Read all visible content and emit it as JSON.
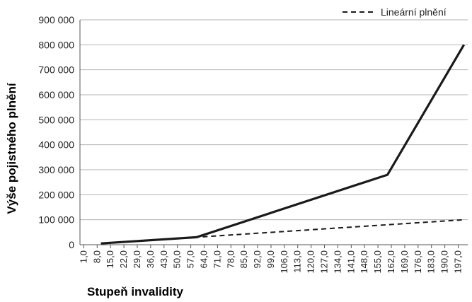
{
  "chart_data": {
    "type": "line",
    "title": "",
    "xlabel": "Stupeň invalidity",
    "ylabel": "Výše pojistného plnění",
    "ylim": [
      0,
      900000
    ],
    "yticks": [
      0,
      100000,
      200000,
      300000,
      400000,
      500000,
      600000,
      700000,
      800000,
      900000
    ],
    "ytick_labels": [
      "0",
      "100 000",
      "200 000",
      "300 000",
      "400 000",
      "500 000",
      "600 000",
      "700 000",
      "800 000",
      "900 000"
    ],
    "xticks": [
      1,
      8,
      15,
      22,
      29,
      36,
      43,
      50,
      57,
      64,
      71,
      78,
      85,
      92,
      99,
      106,
      113,
      120,
      127,
      134,
      141,
      148,
      155,
      162,
      169,
      176,
      183,
      190,
      197
    ],
    "xtick_labels": [
      "1,0",
      "8,0",
      "15,0",
      "22,0",
      "29,0",
      "36,0",
      "43,0",
      "50,0",
      "57,0",
      "64,0",
      "71,0",
      "78,0",
      "85,0",
      "92,0",
      "99,0",
      "106,0",
      "113,0",
      "120,0",
      "127,0",
      "134,0",
      "141,0",
      "148,0",
      "155,0",
      "162,0",
      "169,0",
      "176,0",
      "183,0",
      "190,0",
      "197,0"
    ],
    "grid": true,
    "legend_position": "top-right",
    "series": [
      {
        "name": "",
        "style": "solid",
        "color": "#1a1a1a",
        "x": [
          10,
          60,
          160,
          200
        ],
        "y": [
          5000,
          30000,
          280000,
          800000
        ]
      },
      {
        "name": "Lineární plnění",
        "style": "dashed",
        "color": "#1a1a1a",
        "x": [
          10,
          60,
          200
        ],
        "y": [
          5000,
          30000,
          100000
        ]
      }
    ]
  }
}
